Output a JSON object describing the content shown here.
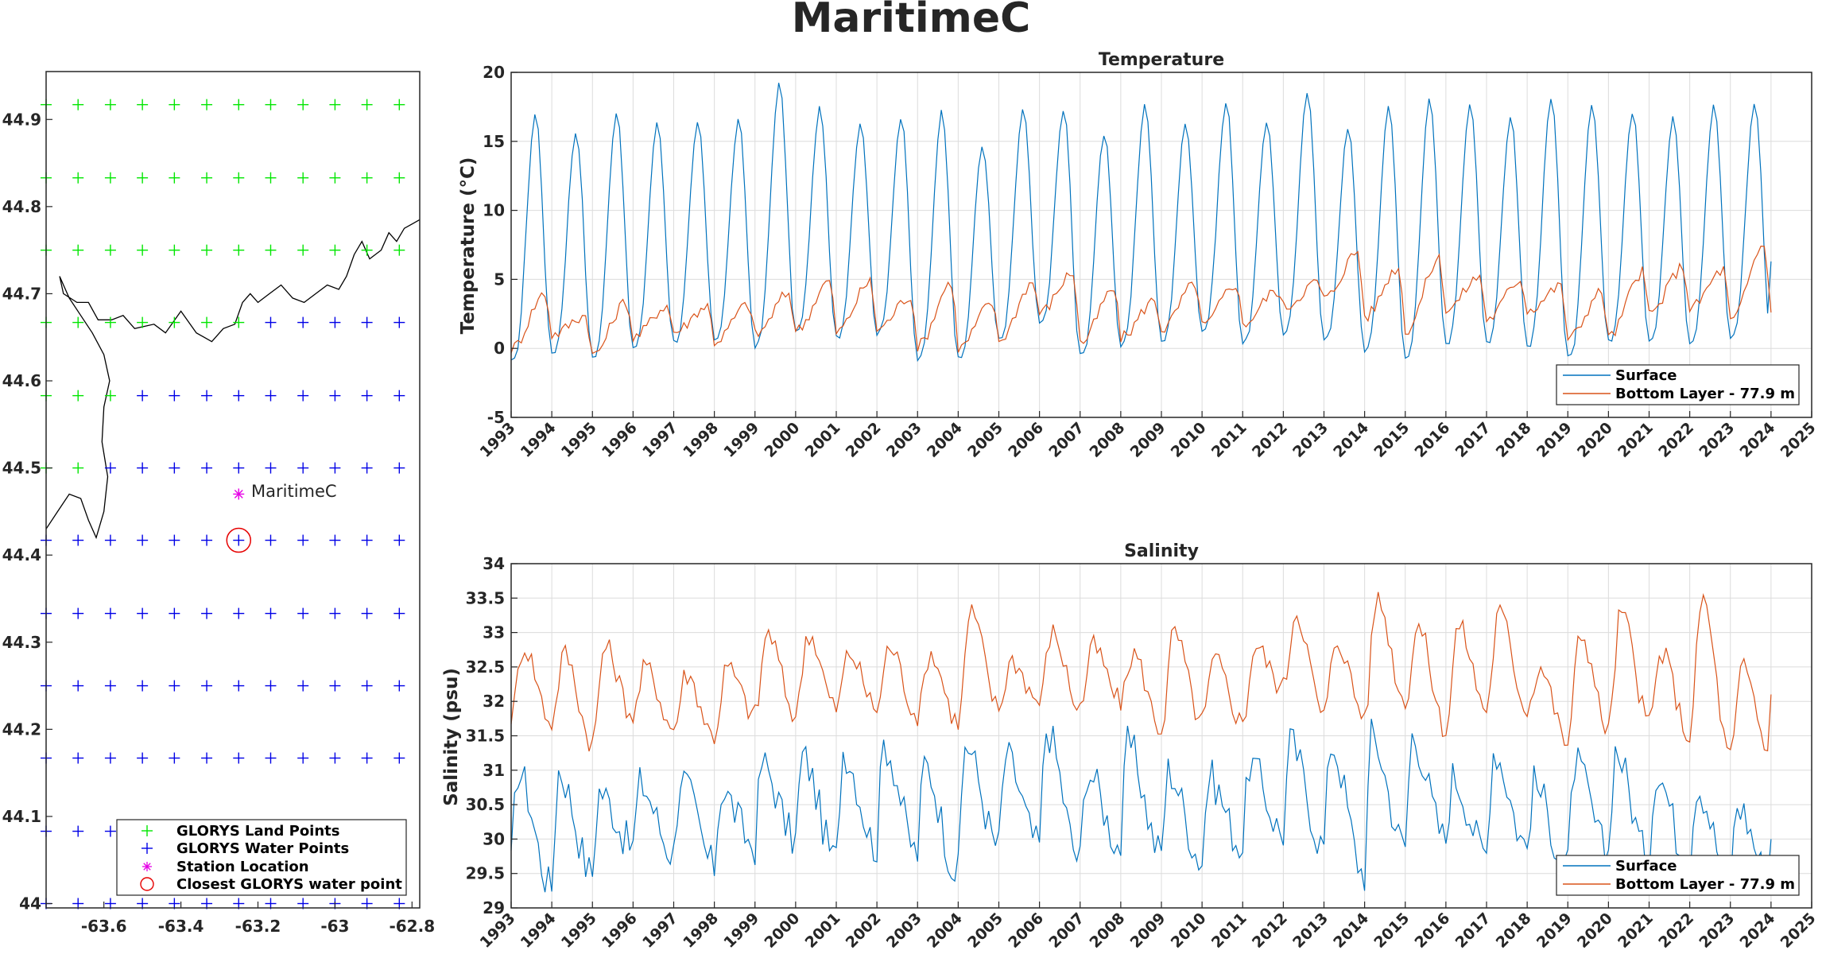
{
  "figure": {
    "title": "MaritimeC"
  },
  "map": {
    "xticks": [
      -63.6,
      -63.4,
      -63.2,
      -63,
      -62.8
    ],
    "xtick_labels": [
      "-63.6",
      "-63.4",
      "-63.2",
      "-63",
      "-62.8"
    ],
    "yticks": [
      44,
      44.1,
      44.2,
      44.3,
      44.4,
      44.5,
      44.6,
      44.7,
      44.8,
      44.9
    ],
    "ytick_labels": [
      "44",
      "44.1",
      "44.2",
      "44.3",
      "44.4",
      "44.5",
      "44.6",
      "44.7",
      "44.8",
      "44.9"
    ],
    "xlim": [
      -63.75,
      -62.78
    ],
    "ylim": [
      43.995,
      44.955
    ],
    "grid_lons": [
      -63.75,
      -63.667,
      -63.583,
      -63.5,
      -63.417,
      -63.333,
      -63.25,
      -63.167,
      -63.083,
      -63,
      -62.917,
      -62.833
    ],
    "grid_lats": [
      44,
      44.083,
      44.167,
      44.25,
      44.333,
      44.417,
      44.5,
      44.583,
      44.667,
      44.75,
      44.833,
      44.917
    ],
    "land_points": {
      "44.917": [
        -63.75,
        -63.667,
        -63.583,
        -63.5,
        -63.417,
        -63.333,
        -63.25,
        -63.167,
        -63.083,
        -63,
        -62.917,
        -62.833
      ],
      "44.833": [
        -63.75,
        -63.667,
        -63.583,
        -63.5,
        -63.417,
        -63.333,
        -63.25,
        -63.167,
        -63.083,
        -63,
        -62.917,
        -62.833
      ],
      "44.75": [
        -63.75,
        -63.667,
        -63.583,
        -63.5,
        -63.417,
        -63.333,
        -63.25,
        -63.167,
        -63.083,
        -63,
        -62.917,
        -62.833
      ],
      "44.667": [
        -63.75,
        -63.667,
        -63.583,
        -63.5,
        -63.417,
        -63.333,
        -63.25
      ],
      "44.583": [
        -63.75,
        -63.667,
        -63.583
      ],
      "44.5": [
        -63.75,
        -63.667
      ]
    },
    "station": {
      "name": "MaritimeC",
      "lon": -63.25,
      "lat": 44.47
    },
    "closest_point": {
      "lon": -63.25,
      "lat": 44.417
    },
    "legend": [
      {
        "label": "GLORYS Land Points",
        "color": "#00e600",
        "marker": "plus"
      },
      {
        "label": "GLORYS Water Points",
        "color": "#0000e6",
        "marker": "plus"
      },
      {
        "label": "Station Location",
        "color": "#e600e6",
        "marker": "star"
      },
      {
        "label": "Closest GLORYS water point",
        "color": "#e60000",
        "marker": "circle"
      }
    ],
    "coastline_lonlat": [
      [
        -63.75,
        44.43
      ],
      [
        -63.72,
        44.45
      ],
      [
        -63.69,
        44.47
      ],
      [
        -63.66,
        44.465
      ],
      [
        -63.64,
        44.44
      ],
      [
        -63.62,
        44.42
      ],
      [
        -63.6,
        44.45
      ],
      [
        -63.59,
        44.49
      ],
      [
        -63.605,
        44.53
      ],
      [
        -63.6,
        44.57
      ],
      [
        -63.585,
        44.6
      ],
      [
        -63.6,
        44.63
      ],
      [
        -63.63,
        44.655
      ],
      [
        -63.66,
        44.675
      ],
      [
        -63.69,
        44.695
      ],
      [
        -63.715,
        44.72
      ],
      [
        -63.705,
        44.7
      ],
      [
        -63.67,
        44.69
      ],
      [
        -63.64,
        44.69
      ],
      [
        -63.615,
        44.67
      ],
      [
        -63.58,
        44.67
      ],
      [
        -63.55,
        44.675
      ],
      [
        -63.52,
        44.66
      ],
      [
        -63.47,
        44.665
      ],
      [
        -63.44,
        44.655
      ],
      [
        -63.4,
        44.68
      ],
      [
        -63.36,
        44.655
      ],
      [
        -63.32,
        44.645
      ],
      [
        -63.29,
        44.66
      ],
      [
        -63.26,
        44.665
      ],
      [
        -63.24,
        44.69
      ],
      [
        -63.22,
        44.7
      ],
      [
        -63.2,
        44.69
      ],
      [
        -63.17,
        44.7
      ],
      [
        -63.14,
        44.71
      ],
      [
        -63.11,
        44.695
      ],
      [
        -63.08,
        44.69
      ],
      [
        -63.05,
        44.7
      ],
      [
        -63.02,
        44.71
      ],
      [
        -62.99,
        44.705
      ],
      [
        -62.97,
        44.72
      ],
      [
        -62.95,
        44.745
      ],
      [
        -62.93,
        44.76
      ],
      [
        -62.91,
        44.74
      ],
      [
        -62.88,
        44.75
      ],
      [
        -62.86,
        44.77
      ],
      [
        -62.84,
        44.76
      ],
      [
        -62.82,
        44.775
      ],
      [
        -62.8,
        44.78
      ],
      [
        -62.78,
        44.785
      ]
    ]
  },
  "temperature": {
    "title": "Temperature",
    "ylabel": "Temperature (°C)",
    "ylim": [
      -5,
      20
    ],
    "yticks": [
      -5,
      0,
      5,
      10,
      15,
      20
    ],
    "xlim": [
      1993,
      2025
    ],
    "xticks": [
      1993,
      1994,
      1995,
      1996,
      1997,
      1998,
      1999,
      2000,
      2001,
      2002,
      2003,
      2004,
      2005,
      2006,
      2007,
      2008,
      2009,
      2010,
      2011,
      2012,
      2013,
      2014,
      2015,
      2016,
      2017,
      2018,
      2019,
      2020,
      2021,
      2022,
      2023,
      2024,
      2025
    ],
    "legend": [
      {
        "name": "Surface",
        "color": "#0072bd"
      },
      {
        "name": "Bottom Layer - 77.9 m",
        "color": "#d95319"
      }
    ]
  },
  "salinity": {
    "title": "Salinity",
    "ylabel": "Salinity (psu)",
    "ylim": [
      29,
      34
    ],
    "yticks": [
      29,
      29.5,
      30,
      30.5,
      31,
      31.5,
      32,
      32.5,
      33,
      33.5,
      34
    ],
    "xlim": [
      1993,
      2025
    ],
    "xticks": [
      1993,
      1994,
      1995,
      1996,
      1997,
      1998,
      1999,
      2000,
      2001,
      2002,
      2003,
      2004,
      2005,
      2006,
      2007,
      2008,
      2009,
      2010,
      2011,
      2012,
      2013,
      2014,
      2015,
      2016,
      2017,
      2018,
      2019,
      2020,
      2021,
      2022,
      2023,
      2024,
      2025
    ],
    "legend": [
      {
        "name": "Surface",
        "color": "#0072bd"
      },
      {
        "name": "Bottom Layer - 77.9 m",
        "color": "#d95319"
      }
    ]
  },
  "chart_data": [
    {
      "type": "line",
      "title": "Temperature",
      "ylabel": "Temperature (°C)",
      "xlim": [
        1993,
        2024.5
      ],
      "ylim": [
        -5,
        20
      ],
      "series": [
        {
          "name": "Surface",
          "annual_max": [
            17,
            15.7,
            17.2,
            16.3,
            16.3,
            16.5,
            19.2,
            17.4,
            16.4,
            16.7,
            17.2,
            14.7,
            17.3,
            17.3,
            15.6,
            17.7,
            16.3,
            17.8,
            16.5,
            18.6,
            15.9,
            17.6,
            18.0,
            17.8,
            16.8,
            18.3,
            17.6,
            17.2,
            16.7,
            17.6,
            17.8
          ],
          "annual_min": [
            -1.0,
            -0.3,
            -0.6,
            0.0,
            0.5,
            0.7,
            0.2,
            1.2,
            0.8,
            1.1,
            -0.8,
            -0.8,
            0.6,
            1.8,
            -0.5,
            0.2,
            0.5,
            1.3,
            0.4,
            1.1,
            0.6,
            -0.1,
            -0.7,
            0.4,
            0.5,
            0.2,
            -0.7,
            0.6,
            0.7,
            0.5,
            0.8
          ],
          "last_value": 6.3
        },
        {
          "name": "Bottom Layer - 77.9 m",
          "annual_max": [
            4.0,
            2.4,
            3.4,
            3.1,
            3.1,
            3.2,
            4.0,
            4.9,
            4.8,
            3.8,
            4.8,
            3.3,
            4.8,
            5.5,
            4.3,
            3.5,
            4.7,
            4.7,
            4.2,
            4.8,
            7.0,
            5.9,
            6.5,
            5.2,
            5.0,
            4.5,
            4.1,
            5.5,
            5.9,
            5.7,
            7.6
          ],
          "annual_min": [
            0.0,
            1.0,
            -0.5,
            0.8,
            1.2,
            0.5,
            1.0,
            1.3,
            1.2,
            1.4,
            0.2,
            0.0,
            0.6,
            2.6,
            0.4,
            0.8,
            1.4,
            1.6,
            1.8,
            3.0,
            3.6,
            2.3,
            1.3,
            2.8,
            2.1,
            2.8,
            0.7,
            0.8,
            2.5,
            2.9,
            1.9
          ],
          "last_value": 2.6
        }
      ]
    },
    {
      "type": "line",
      "title": "Salinity",
      "ylabel": "Salinity (psu)",
      "xlim": [
        1993,
        2024.5
      ],
      "ylim": [
        29,
        34
      ],
      "series": [
        {
          "name": "Surface",
          "annual_max": [
            31.0,
            31.0,
            30.7,
            30.8,
            30.9,
            30.7,
            31.1,
            31.2,
            31.3,
            31.4,
            31.1,
            31.4,
            31.2,
            31.6,
            31.0,
            31.4,
            31.0,
            30.9,
            31.1,
            31.4,
            31.4,
            31.5,
            31.5,
            30.9,
            31.3,
            30.8,
            31.1,
            31.3,
            31.0,
            30.8,
            30.5
          ],
          "annual_min": [
            29.6,
            29.3,
            29.5,
            29.9,
            29.8,
            29.6,
            29.9,
            30.0,
            29.7,
            29.9,
            29.8,
            29.5,
            29.9,
            29.9,
            29.7,
            29.9,
            29.8,
            29.7,
            29.9,
            30.1,
            29.9,
            29.5,
            29.9,
            30.0,
            29.8,
            29.9,
            29.6,
            29.8,
            29.7,
            29.6,
            29.4
          ],
          "last_value": 30.0
        },
        {
          "name": "Bottom Layer - 77.9 m",
          "annual_max": [
            32.8,
            32.7,
            32.8,
            32.5,
            32.4,
            32.5,
            33.0,
            33.0,
            32.7,
            32.8,
            32.7,
            33.3,
            32.6,
            33.0,
            32.8,
            32.7,
            33.0,
            32.6,
            32.8,
            33.3,
            32.9,
            33.5,
            33.1,
            33.1,
            33.3,
            32.5,
            33.0,
            33.3,
            32.7,
            33.5,
            32.5
          ],
          "annual_min": [
            31.8,
            31.7,
            31.4,
            31.8,
            31.6,
            31.5,
            31.8,
            31.8,
            31.9,
            31.9,
            31.8,
            31.7,
            31.9,
            32.0,
            31.9,
            32.0,
            31.6,
            31.7,
            31.7,
            32.2,
            31.8,
            31.8,
            32.0,
            31.6,
            31.9,
            31.9,
            31.4,
            31.6,
            31.7,
            31.5,
            31.2
          ],
          "last_value": 32.1
        }
      ]
    }
  ]
}
